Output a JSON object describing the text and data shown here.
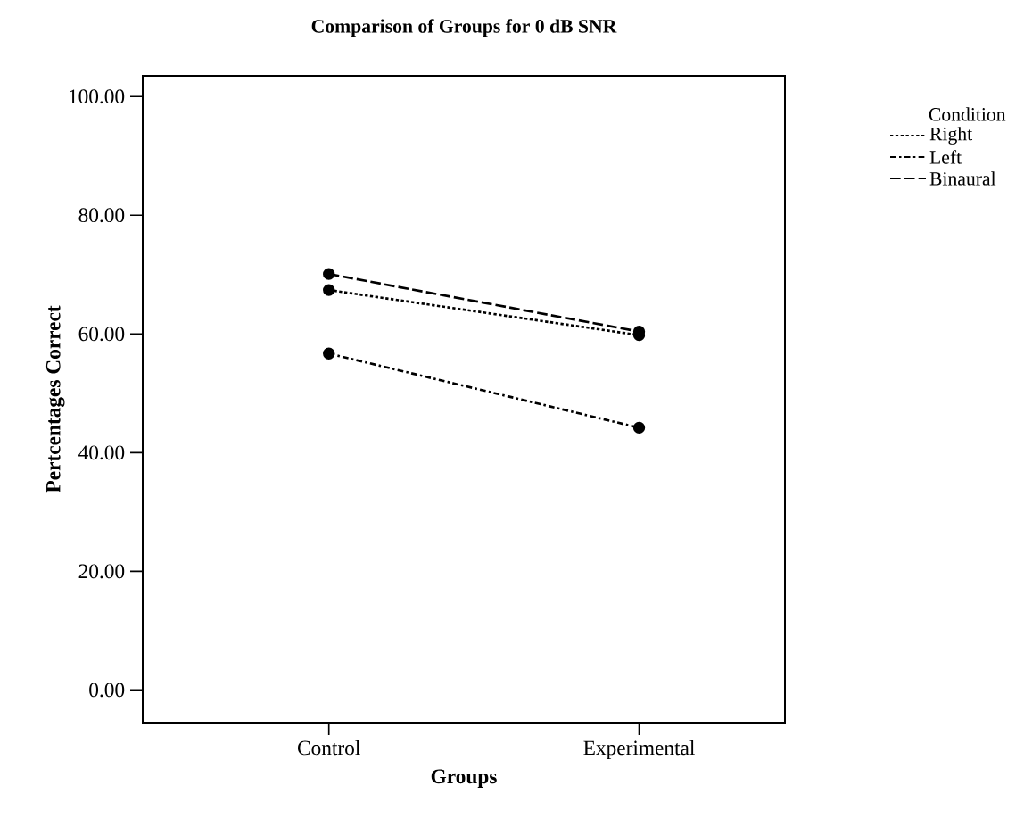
{
  "chart_data": {
    "type": "line",
    "title": "Comparison of Groups for 0 dB SNR",
    "xlabel": "Groups",
    "ylabel": "Pertcentages Correct",
    "legend_title": "Condition",
    "categories": [
      "Control",
      "Experimental"
    ],
    "series": [
      {
        "name": "Right",
        "color": "#000000",
        "values": [
          67.4,
          59.8
        ],
        "line_style": "dotted"
      },
      {
        "name": "Left",
        "color": "#000000",
        "values": [
          56.7,
          44.2
        ],
        "line_style": "dashdot"
      },
      {
        "name": "Binaural",
        "color": "#000000",
        "values": [
          70.1,
          60.4
        ],
        "line_style": "dashed"
      }
    ],
    "ylim": [
      -5.5,
      103.5
    ],
    "yticks": [
      {
        "value": 0,
        "label": "0.00"
      },
      {
        "value": 20,
        "label": "20.00"
      },
      {
        "value": 40,
        "label": "40.00"
      },
      {
        "value": 60,
        "label": "60.00"
      },
      {
        "value": 80,
        "label": "80.00"
      },
      {
        "value": 100,
        "label": "100.00"
      }
    ],
    "marker": "circle",
    "grid": false,
    "legend": "top right"
  }
}
